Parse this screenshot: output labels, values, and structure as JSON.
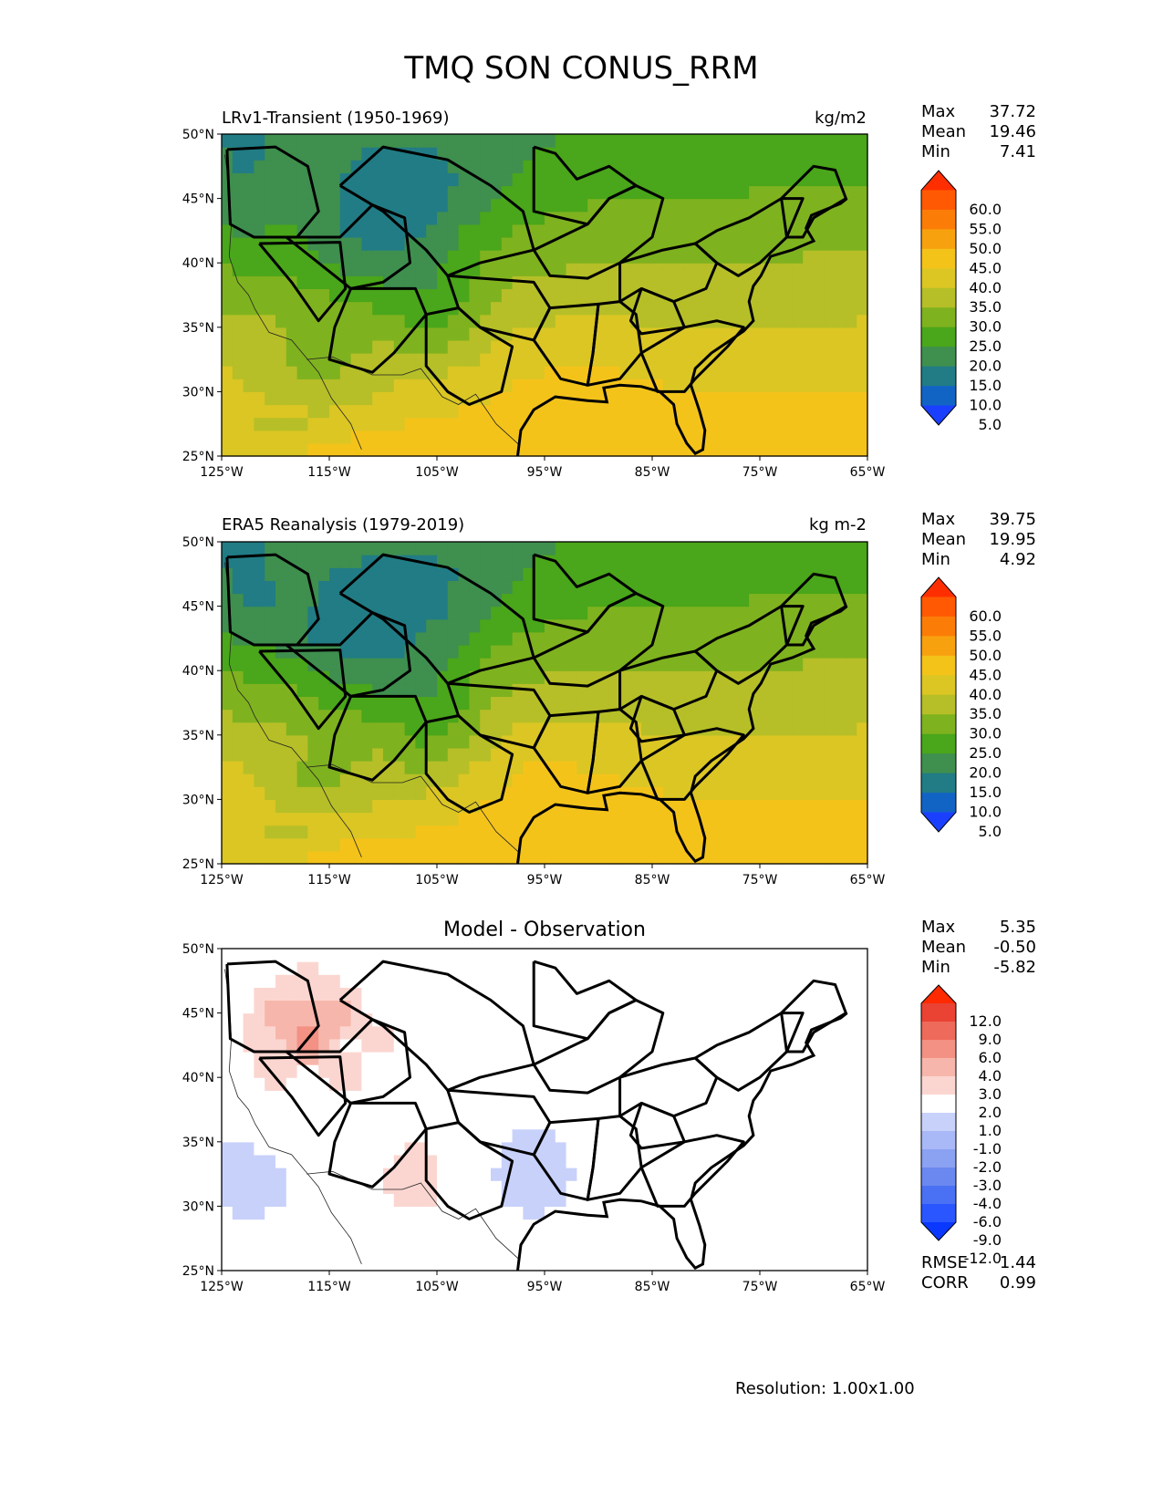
{
  "figure_title": "TMQ SON CONUS_RRM",
  "resolution": "Resolution: 1.00x1.00",
  "axes": {
    "lat_ticks": [
      "50°N",
      "45°N",
      "40°N",
      "35°N",
      "30°N",
      "25°N"
    ],
    "lon_ticks": [
      "125°W",
      "115°W",
      "105°W",
      "95°W",
      "85°W",
      "75°W",
      "65°W"
    ]
  },
  "panels": [
    {
      "title": "LRv1-Transient (1950-1969)",
      "units": "kg/m2",
      "stats": [
        {
          "label": "Max",
          "value": "37.72"
        },
        {
          "label": "Mean",
          "value": "19.46"
        },
        {
          "label": "Min",
          "value": "7.41"
        }
      ]
    },
    {
      "title": "ERA5 Reanalysis (1979-2019)",
      "units": "kg m-2",
      "stats": [
        {
          "label": "Max",
          "value": "39.75"
        },
        {
          "label": "Mean",
          "value": "19.95"
        },
        {
          "label": "Min",
          "value": "4.92"
        }
      ]
    },
    {
      "title": "Model - Observation",
      "units": "",
      "stats": [
        {
          "label": "Max",
          "value": "5.35"
        },
        {
          "label": "Mean",
          "value": "-0.50"
        },
        {
          "label": "Min",
          "value": "-5.82"
        }
      ],
      "metrics": [
        {
          "label": "RMSE",
          "value": "1.44"
        },
        {
          "label": "CORR",
          "value": "0.99"
        }
      ]
    }
  ],
  "chart_data": [
    {
      "type": "heatmap",
      "title": "LRv1-Transient (1950-1969)",
      "units": "kg/m2",
      "xlim": [
        -125,
        -65
      ],
      "ylim": [
        25,
        50
      ],
      "colorbar_levels": [
        "60.0",
        "55.0",
        "50.0",
        "45.0",
        "40.0",
        "35.0",
        "30.0",
        "25.0",
        "20.0",
        "15.0",
        "10.0",
        "5.0"
      ],
      "stats": {
        "max": 37.72,
        "mean": 19.46,
        "min": 7.41
      }
    },
    {
      "type": "heatmap",
      "title": "ERA5 Reanalysis (1979-2019)",
      "units": "kg m-2",
      "xlim": [
        -125,
        -65
      ],
      "ylim": [
        25,
        50
      ],
      "colorbar_levels": [
        "60.0",
        "55.0",
        "50.0",
        "45.0",
        "40.0",
        "35.0",
        "30.0",
        "25.0",
        "20.0",
        "15.0",
        "10.0",
        "5.0"
      ],
      "stats": {
        "max": 39.75,
        "mean": 19.95,
        "min": 4.92
      }
    },
    {
      "type": "heatmap",
      "title": "Model - Observation",
      "xlim": [
        -125,
        -65
      ],
      "ylim": [
        25,
        50
      ],
      "colorbar_levels": [
        "12.0",
        "9.0",
        "6.0",
        "4.0",
        "3.0",
        "2.0",
        "1.0",
        "-1.0",
        "-2.0",
        "-3.0",
        "-4.0",
        "-6.0",
        "-9.0",
        "-12.0"
      ],
      "stats": {
        "max": 5.35,
        "mean": -0.5,
        "min": -5.82,
        "rmse": 1.44,
        "corr": 0.99
      }
    }
  ],
  "palettes": {
    "abs": [
      "#1b3fff",
      "#1264c4",
      "#217c85",
      "#3f8f4f",
      "#4aa61a",
      "#7fb21f",
      "#b6bf27",
      "#dbc624",
      "#f4c31a",
      "#f8a10f",
      "#fb7d08",
      "#ff5a03",
      "#ff2e00"
    ],
    "diff": [
      "#0a38ff",
      "#2a56ff",
      "#4a70f4",
      "#6b88f0",
      "#8ba1f2",
      "#a9b8f6",
      "#c8d1fa",
      "#ffffff",
      "#fbd6d0",
      "#f7b6ab",
      "#f29184",
      "#ee6a5a",
      "#ea4233",
      "#ff2a00"
    ]
  }
}
